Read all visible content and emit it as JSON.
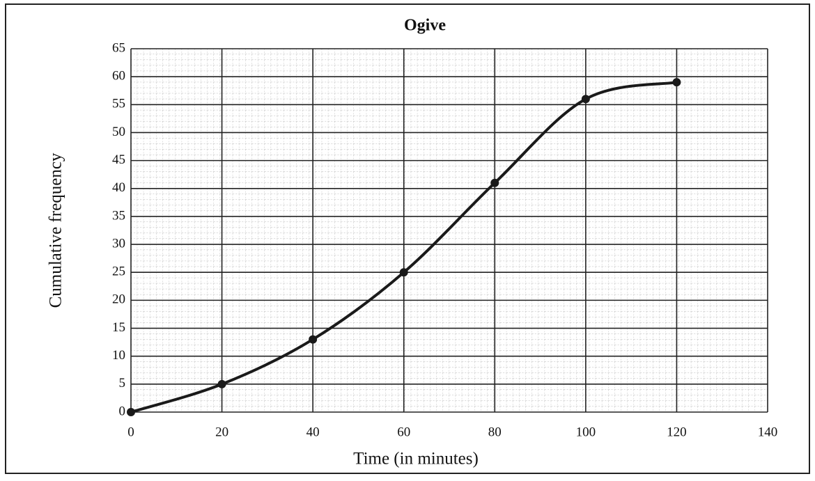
{
  "chart_data": {
    "type": "line",
    "title": "Ogive",
    "x_label": "Time (in minutes)",
    "y_label": "Cumulative frequency",
    "x": [
      0,
      20,
      40,
      60,
      80,
      100,
      120
    ],
    "series": [
      {
        "color": "#1a1a1a",
        "values": [
          0,
          5,
          13,
          25,
          41,
          56,
          59
        ]
      }
    ],
    "xlim": [
      0,
      140
    ],
    "xticks": [
      0,
      20,
      40,
      60,
      80,
      100,
      120,
      140
    ],
    "ylim": [
      0,
      65
    ],
    "yticks": [
      0,
      5,
      10,
      15,
      20,
      25,
      30,
      35,
      40,
      45,
      50,
      55,
      60,
      65
    ],
    "grid": true,
    "smooth": true,
    "markers": true
  }
}
